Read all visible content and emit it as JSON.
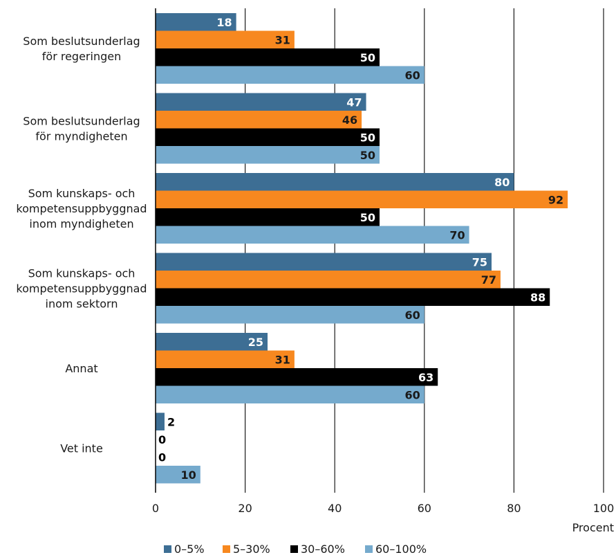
{
  "chart_data": {
    "type": "bar",
    "orientation": "horizontal",
    "categories": [
      [
        "Som beslutsunderlag",
        "för regeringen"
      ],
      [
        "Som beslutsunderlag",
        "för myndigheten"
      ],
      [
        "Som kunskaps- och",
        "kompetensuppbyggnad",
        "inom myndigheten"
      ],
      [
        "Som kunskaps- och",
        "kompetensuppbyggnad",
        "inom sektorn"
      ],
      [
        "Annat"
      ],
      [
        "Vet inte"
      ]
    ],
    "series": [
      {
        "name": "0–5%",
        "color": "#3d6e94",
        "label_color": "#ffffff",
        "values": [
          18,
          47,
          80,
          75,
          25,
          2
        ]
      },
      {
        "name": "5–30%",
        "color": "#f7881f",
        "label_color": "#1a1a1a",
        "values": [
          31,
          46,
          92,
          77,
          31,
          0
        ]
      },
      {
        "name": "30–60%",
        "color": "#000000",
        "label_color": "#ffffff",
        "values": [
          50,
          50,
          50,
          88,
          63,
          0
        ]
      },
      {
        "name": "60–100%",
        "color": "#75aacd",
        "label_color": "#1a1a1a",
        "values": [
          60,
          50,
          70,
          60,
          60,
          10
        ]
      }
    ],
    "xlim": [
      0,
      100
    ],
    "xticks": [
      0,
      20,
      40,
      60,
      80,
      100
    ],
    "xlabel": "Procent",
    "grid": true,
    "legend_position": "bottom"
  }
}
